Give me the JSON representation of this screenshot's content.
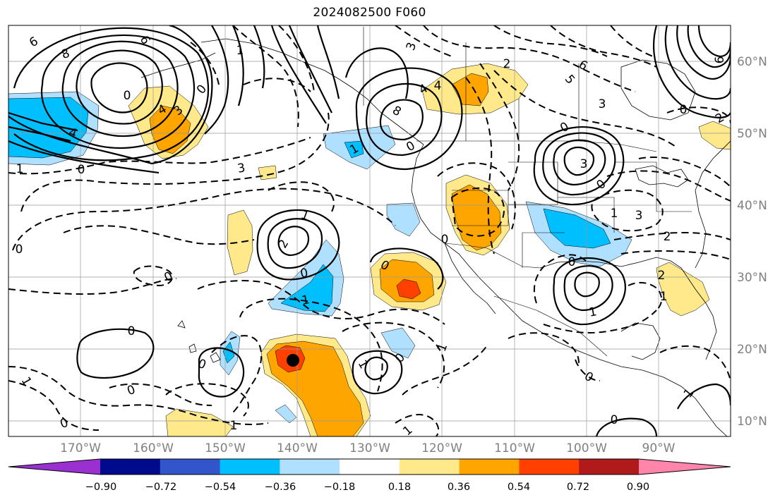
{
  "title": "2024082500 F060",
  "map": {
    "lon_labels": [
      "170°W",
      "160°W",
      "150°W",
      "140°W",
      "130°W",
      "120°W",
      "110°W",
      "100°W",
      "90°W"
    ],
    "lat_labels": [
      "60°N",
      "50°N",
      "40°N",
      "30°N",
      "20°N",
      "10°N"
    ],
    "contour_labels": [
      {
        "text": "6"
      },
      {
        "text": "8"
      },
      {
        "text": "6"
      },
      {
        "text": "0"
      },
      {
        "text": "4"
      },
      {
        "text": "0"
      },
      {
        "text": "1"
      },
      {
        "text": "4"
      },
      {
        "text": "3"
      },
      {
        "text": "0"
      },
      {
        "text": "1"
      },
      {
        "text": "3"
      },
      {
        "text": "8"
      },
      {
        "text": "4"
      },
      {
        "text": "2"
      },
      {
        "text": "6"
      },
      {
        "text": "5"
      },
      {
        "text": "4"
      },
      {
        "text": "0"
      },
      {
        "text": "3"
      },
      {
        "text": "3"
      },
      {
        "text": "2"
      },
      {
        "text": "6"
      },
      {
        "text": "1"
      },
      {
        "text": "3"
      },
      {
        "text": "3"
      },
      {
        "text": "1"
      },
      {
        "text": "2"
      },
      {
        "text": "0"
      },
      {
        "text": "0"
      },
      {
        "text": "0"
      },
      {
        "text": "1"
      },
      {
        "text": "0"
      },
      {
        "text": "0"
      },
      {
        "text": "1"
      },
      {
        "text": "1"
      },
      {
        "text": "0"
      },
      {
        "text": "1"
      },
      {
        "text": "2"
      },
      {
        "text": "0"
      },
      {
        "text": "1"
      },
      {
        "text": "0"
      },
      {
        "text": "1"
      },
      {
        "text": "0"
      },
      {
        "text": "1"
      },
      {
        "text": "1"
      },
      {
        "text": "0"
      },
      {
        "text": "0"
      },
      {
        "text": "1"
      },
      {
        "text": "0"
      },
      {
        "text": "0"
      },
      {
        "text": "1"
      },
      {
        "text": "0"
      },
      {
        "text": "2"
      },
      {
        "text": "0"
      },
      {
        "text": "0"
      }
    ],
    "storm_marker": {
      "lon": -140,
      "lat": 18.5
    }
  },
  "colorbar": {
    "labels": [
      "−0.90",
      "−0.72",
      "−0.54",
      "−0.36",
      "−0.18",
      "0.18",
      "0.36",
      "0.54",
      "0.72",
      "0.90"
    ],
    "colors": [
      "#9b30d0",
      "#000a8c",
      "#3355cc",
      "#00bfff",
      "#b0e0ff",
      "#ffffff",
      "#ffe98a",
      "#ffa500",
      "#ff4000",
      "#b01a1a",
      "#ff85aa"
    ]
  },
  "colors": {
    "neg_light": "#b0e0ff",
    "neg_mid": "#00bfff",
    "pos_light": "#ffe98a",
    "pos_mid": "#ffa500",
    "pos_strong": "#ff4000"
  }
}
